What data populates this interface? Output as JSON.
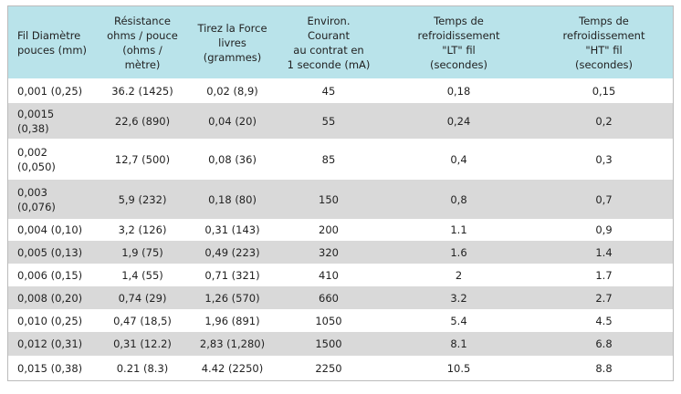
{
  "table": {
    "header": [
      [
        "Fil Diamètre",
        "pouces (mm)"
      ],
      [
        "Résistance",
        "ohms / pouce",
        "(ohms /",
        "mètre)"
      ],
      [
        "Tirez la Force",
        "livres",
        "(grammes)"
      ],
      [
        "Environ.",
        "Courant",
        "au contrat en",
        "1 seconde (mA)"
      ],
      [
        "Temps de",
        "refroidissement",
        "\"LT\" fil",
        "(secondes)"
      ],
      [
        "Temps de",
        "refroidissement",
        "\"HT\" fil",
        "(secondes)"
      ]
    ],
    "rows": [
      [
        [
          "0,001 (0,25)"
        ],
        [
          "36.2 (1425)"
        ],
        [
          "0,02 (8,9)"
        ],
        [
          "45"
        ],
        [
          "0,18"
        ],
        [
          "0,15"
        ]
      ],
      [
        [
          "0,0015",
          "(0,38)"
        ],
        [
          "22,6 (890)"
        ],
        [
          "0,04 (20)"
        ],
        [
          "55"
        ],
        [
          "0,24"
        ],
        [
          "0,2"
        ]
      ],
      [
        [
          "0,002",
          "(0,050)"
        ],
        [
          "12,7 (500)"
        ],
        [
          "0,08 (36)"
        ],
        [
          "85"
        ],
        [
          "0,4"
        ],
        [
          "0,3"
        ]
      ],
      [
        [
          "0,003",
          "(0,076)"
        ],
        [
          "5,9 (232)"
        ],
        [
          "0,18 (80)"
        ],
        [
          "150"
        ],
        [
          "0,8"
        ],
        [
          "0,7"
        ]
      ],
      [
        [
          "0,004 (0,10)"
        ],
        [
          "3,2 (126)"
        ],
        [
          "0,31 (143)"
        ],
        [
          "200"
        ],
        [
          "1.1"
        ],
        [
          "0,9"
        ]
      ],
      [
        [
          "0,005 (0,13)"
        ],
        [
          "1,9 (75)"
        ],
        [
          "0,49 (223)"
        ],
        [
          "320"
        ],
        [
          "1.6"
        ],
        [
          "1.4"
        ]
      ],
      [
        [
          "0,006 (0,15)"
        ],
        [
          "1,4 (55)"
        ],
        [
          "0,71 (321)"
        ],
        [
          "410"
        ],
        [
          "2"
        ],
        [
          "1.7"
        ]
      ],
      [
        [
          "0,008 (0,20)"
        ],
        [
          "0,74 (29)"
        ],
        [
          "1,26 (570)"
        ],
        [
          "660"
        ],
        [
          "3.2"
        ],
        [
          "2.7"
        ]
      ],
      [
        [
          "0,010 (0,25)"
        ],
        [
          "0,47 (18,5)"
        ],
        [
          "1,96 (891)"
        ],
        [
          "1050"
        ],
        [
          "5.4"
        ],
        [
          "4.5"
        ]
      ],
      [
        [
          "0,012 (0,31)"
        ],
        [
          "0,31 (12.2)"
        ],
        [
          "2,83 (1,280)"
        ],
        [
          "1500"
        ],
        [
          "8.1"
        ],
        [
          "6.8"
        ]
      ],
      [
        [
          "0,015 (0,38)"
        ],
        [
          "0.21 (8.3)"
        ],
        [
          "4.42 (2250)"
        ],
        [
          "2250"
        ],
        [
          "10.5"
        ],
        [
          "8.8"
        ]
      ]
    ]
  }
}
